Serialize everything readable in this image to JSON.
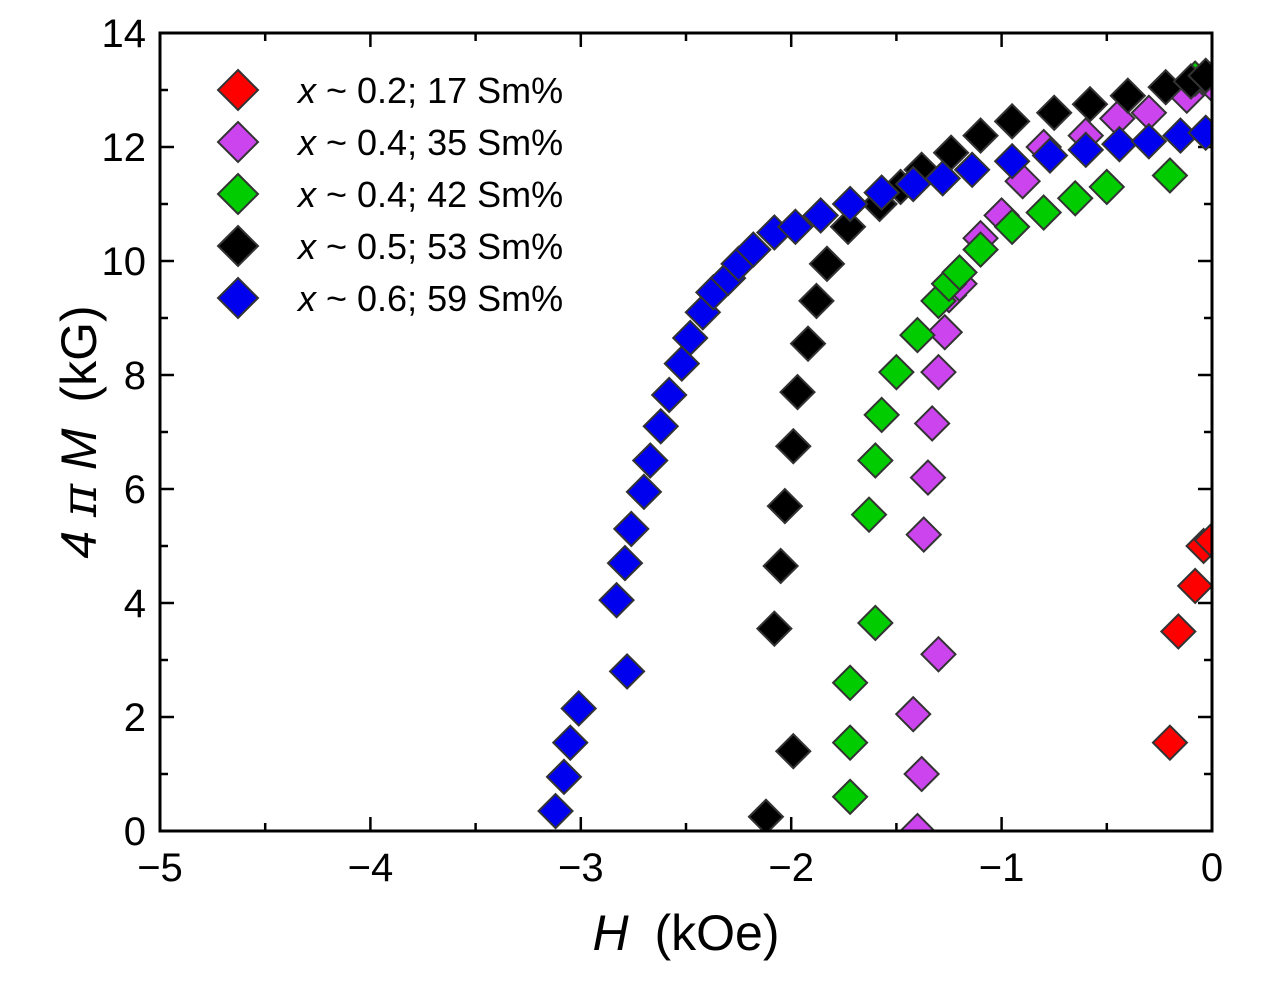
{
  "chart_data": {
    "type": "scatter",
    "xlabel": {
      "var": "H",
      "unit": "(kOe)"
    },
    "ylabel": {
      "prefix": "4",
      "pi": "π",
      "var": "M",
      "unit": "(kG)"
    },
    "xlim": [
      -5,
      0
    ],
    "ylim": [
      0,
      14
    ],
    "xticks": [
      -5,
      -4,
      -3,
      -2,
      -1,
      0
    ],
    "xtick_labels": [
      "−5",
      "−4",
      "−3",
      "−2",
      "−1",
      "0"
    ],
    "yticks": [
      0,
      2,
      4,
      6,
      8,
      10,
      12,
      14
    ],
    "ytick_labels": [
      "0",
      "2",
      "4",
      "6",
      "8",
      "10",
      "12",
      "14"
    ],
    "grid": false,
    "legend_position": "top-left",
    "marker": "diamond",
    "series": [
      {
        "name": "x ~ 0.2; 17 Sm%",
        "name_var": "x",
        "name_rest": " ~ 0.2; 17 Sm%",
        "color": "#ff0000",
        "x": [
          -0.2,
          -0.16,
          -0.08,
          -0.04,
          0.0
        ],
        "y": [
          1.55,
          3.5,
          4.3,
          5.0,
          5.1
        ]
      },
      {
        "name": "x ~ 0.4; 35 Sm%",
        "name_var": "x",
        "name_rest": " ~ 0.4; 35 Sm%",
        "color": "#cc44ee",
        "x": [
          -1.4,
          -1.38,
          -1.42,
          -1.3,
          -1.37,
          -1.35,
          -1.33,
          -1.3,
          -1.27,
          -1.25,
          -1.2,
          -1.1,
          -1.0,
          -0.9,
          -0.8,
          -0.6,
          -0.45,
          -0.3,
          -0.12,
          0.0
        ],
        "y": [
          0.0,
          1.0,
          2.05,
          3.1,
          5.2,
          6.2,
          7.15,
          8.05,
          8.75,
          9.4,
          9.6,
          10.4,
          10.8,
          11.4,
          12.0,
          12.2,
          12.5,
          12.6,
          12.9,
          13.1
        ]
      },
      {
        "name": "x ~ 0.4; 42 Sm%",
        "name_var": "x",
        "name_rest": " ~ 0.4; 42 Sm%",
        "color": "#00cc00",
        "x": [
          -1.72,
          -1.72,
          -1.72,
          -1.6,
          -1.63,
          -1.6,
          -1.57,
          -1.5,
          -1.4,
          -1.3,
          -1.25,
          -1.2,
          -1.1,
          -0.95,
          -0.8,
          -0.65,
          -0.5,
          -0.2,
          -0.08
        ],
        "y": [
          0.6,
          1.55,
          2.6,
          3.65,
          5.55,
          6.5,
          7.3,
          8.05,
          8.7,
          9.3,
          9.6,
          9.8,
          10.2,
          10.6,
          10.85,
          11.1,
          11.3,
          11.5,
          13.2
        ]
      },
      {
        "name": "x ~ 0.5; 53 Sm%",
        "name_var": "x",
        "name_rest": " ~ 0.5; 53 Sm%",
        "color": "#000000",
        "x": [
          -2.12,
          -1.99,
          -2.08,
          -2.05,
          -2.03,
          -1.99,
          -1.97,
          -1.92,
          -1.88,
          -1.83,
          -1.73,
          -1.58,
          -1.48,
          -1.38,
          -1.24,
          -1.1,
          -0.95,
          -0.75,
          -0.58,
          -0.4,
          -0.22,
          -0.1,
          -0.03
        ],
        "y": [
          0.25,
          1.4,
          3.55,
          4.65,
          5.7,
          6.75,
          7.7,
          8.55,
          9.3,
          9.95,
          10.6,
          11.0,
          11.3,
          11.6,
          11.9,
          12.2,
          12.45,
          12.6,
          12.75,
          12.9,
          13.05,
          13.15,
          13.25
        ]
      },
      {
        "name": "x ~ 0.6; 59 Sm%",
        "name_var": "x",
        "name_rest": " ~ 0.6; 59 Sm%",
        "color": "#0000ee",
        "x": [
          -3.12,
          -3.08,
          -3.05,
          -3.01,
          -2.78,
          -2.83,
          -2.79,
          -2.76,
          -2.7,
          -2.67,
          -2.62,
          -2.58,
          -2.52,
          -2.48,
          -2.42,
          -2.37,
          -2.3,
          -2.25,
          -2.18,
          -2.08,
          -1.98,
          -1.86,
          -1.72,
          -1.57,
          -1.42,
          -1.28,
          -1.14,
          -0.95,
          -0.77,
          -0.6,
          -0.44,
          -0.3,
          -0.15,
          -0.03
        ],
        "y": [
          0.35,
          0.95,
          1.55,
          2.15,
          2.8,
          4.05,
          4.7,
          5.3,
          5.95,
          6.5,
          7.1,
          7.65,
          8.2,
          8.65,
          9.1,
          9.45,
          9.7,
          9.95,
          10.2,
          10.5,
          10.6,
          10.8,
          11.0,
          11.2,
          11.35,
          11.45,
          11.6,
          11.75,
          11.85,
          11.95,
          12.05,
          12.1,
          12.2,
          12.25
        ]
      }
    ]
  }
}
